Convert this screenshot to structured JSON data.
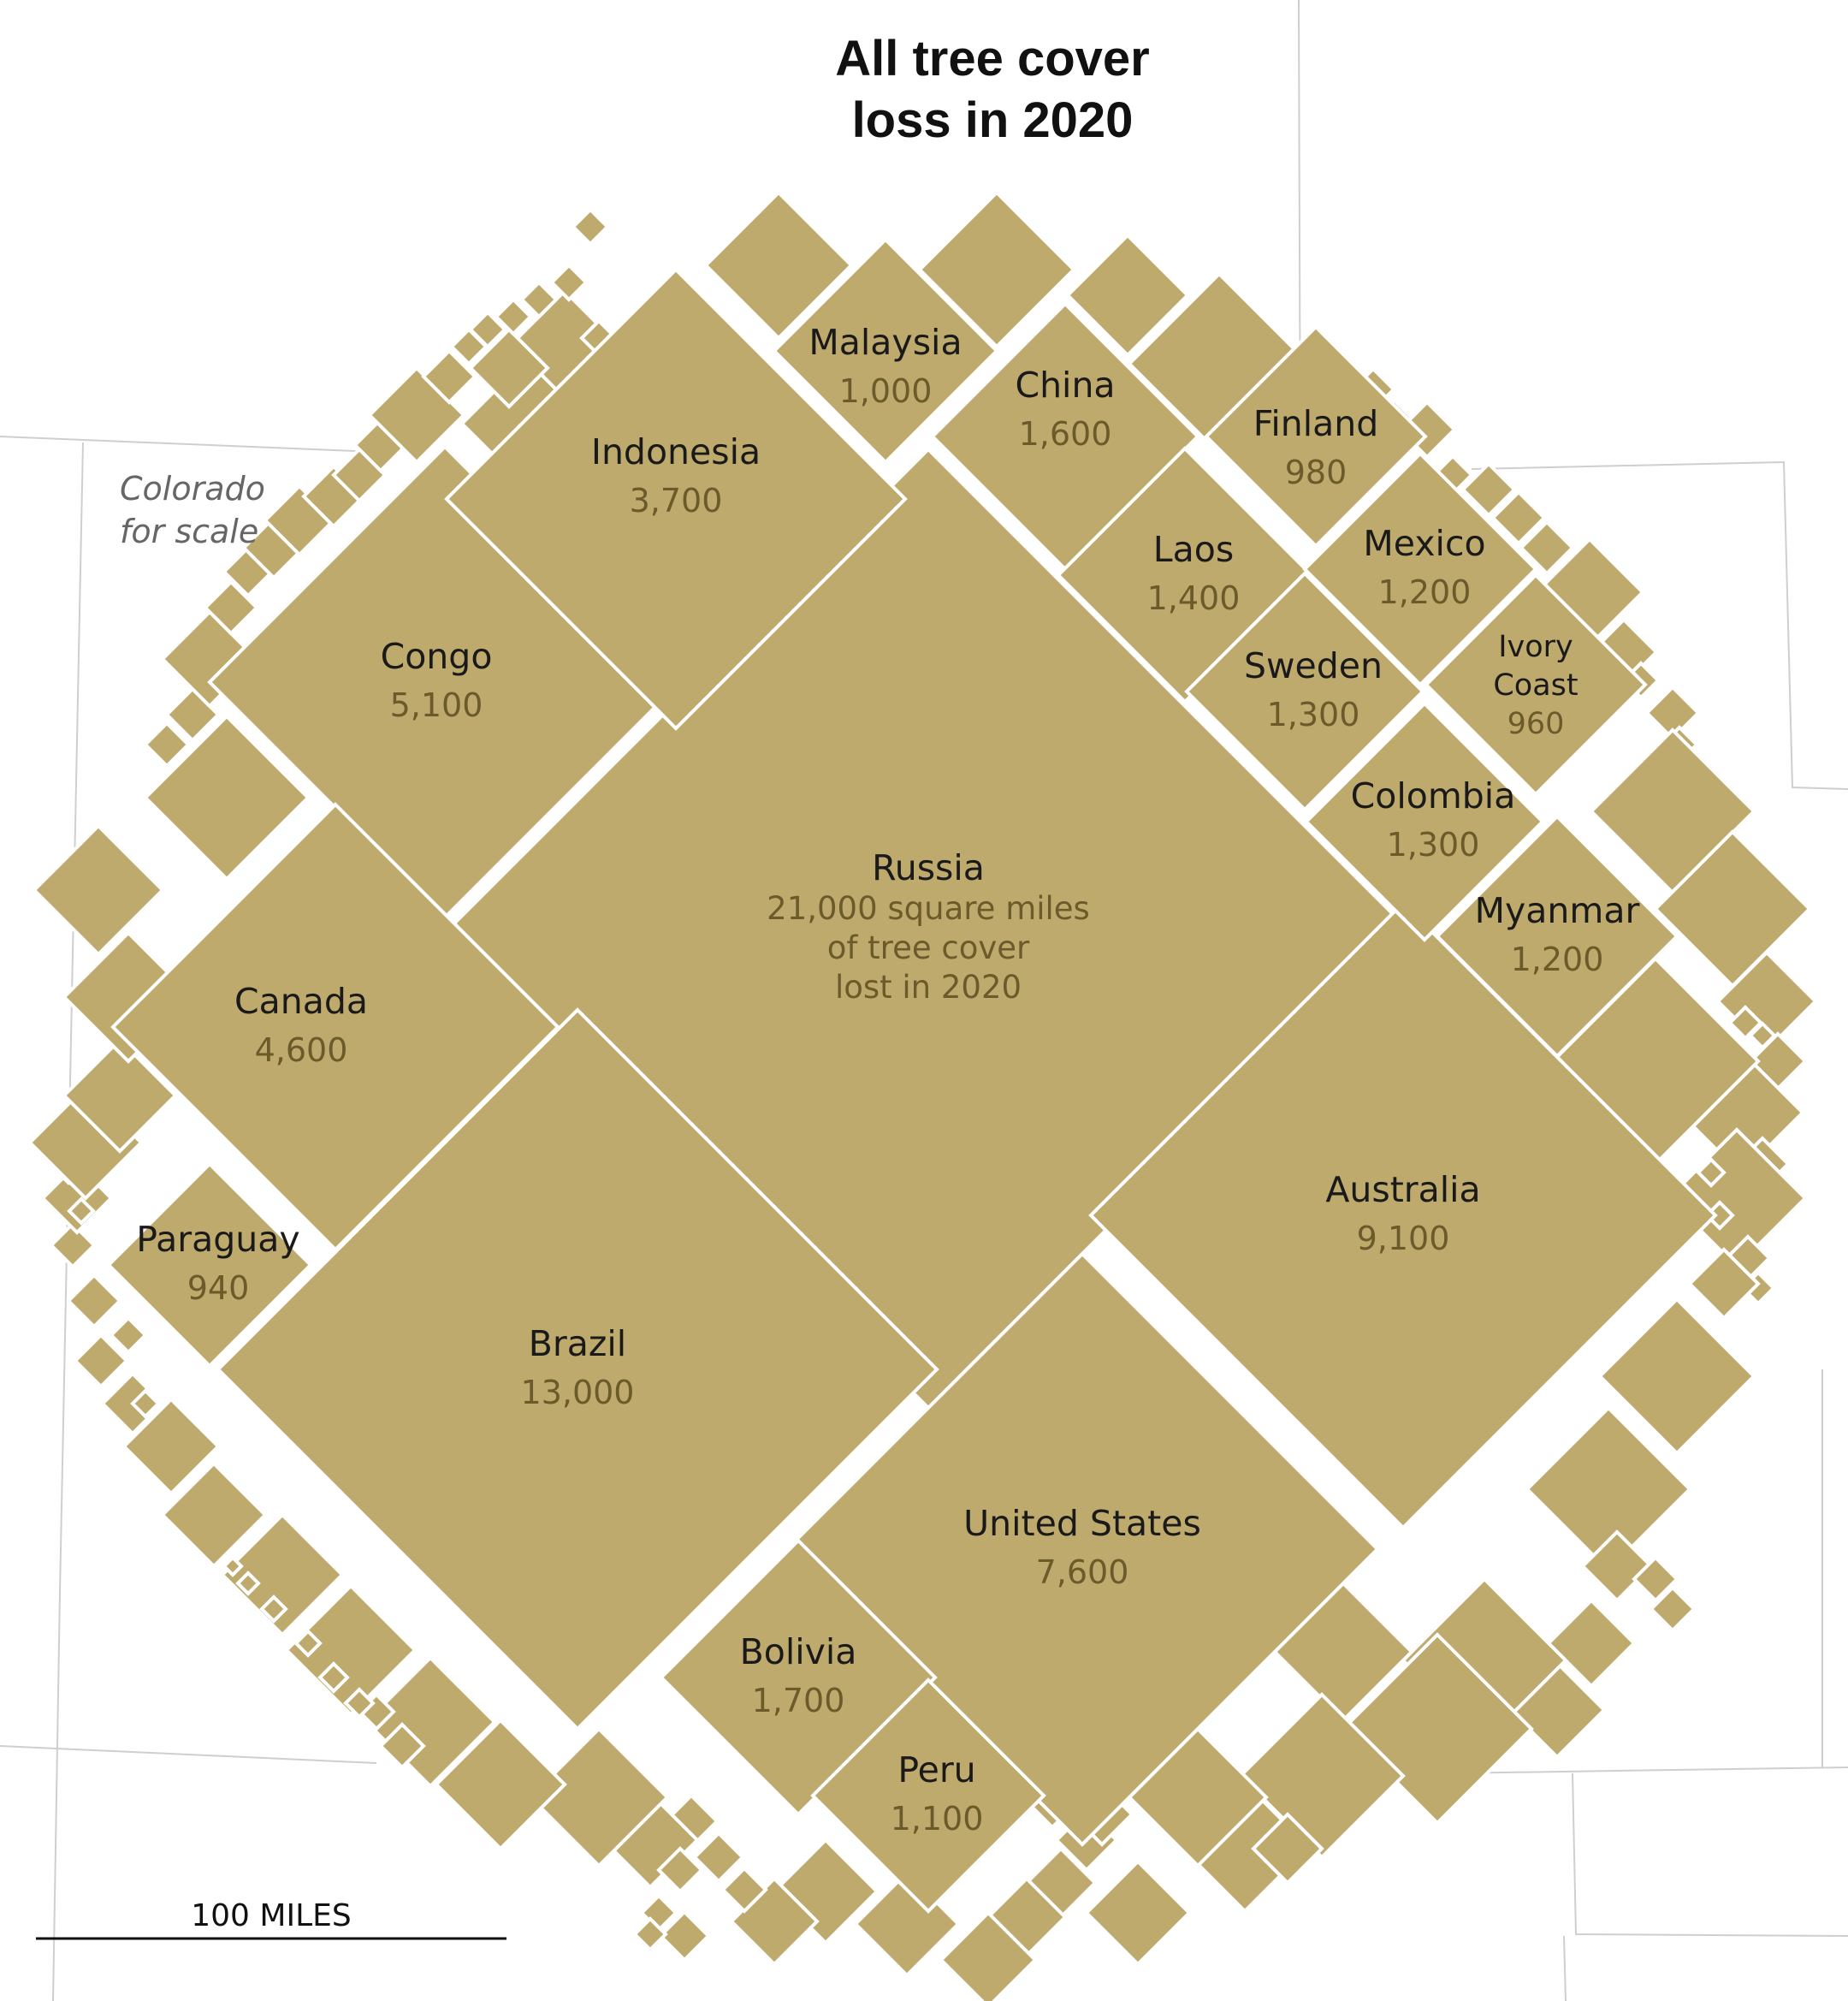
{
  "chart_data": {
    "type": "treemap",
    "title_lines": [
      "All tree cover",
      "loss in 2020"
    ],
    "annotation_lines": [
      "Colorado",
      "for scale"
    ],
    "scale_label": "100 MILES",
    "colors": {
      "fill": "#bfaa6d",
      "stroke": "#ffffff",
      "state_border": "#cfcfcf",
      "value_text": "#6b5a2a"
    },
    "countries": [
      {
        "name": "Russia",
        "value": 21000,
        "label_lines": [
          "Russia"
        ],
        "value_lines": [
          "21,000 square miles",
          "of tree cover",
          "lost in 2020"
        ]
      },
      {
        "name": "Brazil",
        "value": 13000,
        "label_lines": [
          "Brazil"
        ],
        "value_lines": [
          "13,000"
        ]
      },
      {
        "name": "Australia",
        "value": 9100,
        "label_lines": [
          "Australia"
        ],
        "value_lines": [
          "9,100"
        ]
      },
      {
        "name": "United States",
        "value": 7600,
        "label_lines": [
          "United States"
        ],
        "value_lines": [
          "7,600"
        ]
      },
      {
        "name": "Congo",
        "value": 5100,
        "label_lines": [
          "Congo"
        ],
        "value_lines": [
          "5,100"
        ]
      },
      {
        "name": "Canada",
        "value": 4600,
        "label_lines": [
          "Canada"
        ],
        "value_lines": [
          "4,600"
        ]
      },
      {
        "name": "Indonesia",
        "value": 3700,
        "label_lines": [
          "Indonesia"
        ],
        "value_lines": [
          "3,700"
        ]
      },
      {
        "name": "Bolivia",
        "value": 1700,
        "label_lines": [
          "Bolivia"
        ],
        "value_lines": [
          "1,700"
        ]
      },
      {
        "name": "China",
        "value": 1600,
        "label_lines": [
          "China"
        ],
        "value_lines": [
          "1,600"
        ]
      },
      {
        "name": "Laos",
        "value": 1400,
        "label_lines": [
          "Laos"
        ],
        "value_lines": [
          "1,400"
        ]
      },
      {
        "name": "Sweden",
        "value": 1300,
        "label_lines": [
          "Sweden"
        ],
        "value_lines": [
          "1,300"
        ]
      },
      {
        "name": "Colombia",
        "value": 1300,
        "label_lines": [
          "Colombia"
        ],
        "value_lines": [
          "1,300"
        ]
      },
      {
        "name": "Mexico",
        "value": 1200,
        "label_lines": [
          "Mexico"
        ],
        "value_lines": [
          "1,200"
        ]
      },
      {
        "name": "Myanmar",
        "value": 1200,
        "label_lines": [
          "Myanmar"
        ],
        "value_lines": [
          "1,200"
        ]
      },
      {
        "name": "Peru",
        "value": 1100,
        "label_lines": [
          "Peru"
        ],
        "value_lines": [
          "1,100"
        ]
      },
      {
        "name": "Malaysia",
        "value": 1000,
        "label_lines": [
          "Malaysia"
        ],
        "value_lines": [
          "1,000"
        ]
      },
      {
        "name": "Finland",
        "value": 980,
        "label_lines": [
          "Finland"
        ],
        "value_lines": [
          "980"
        ]
      },
      {
        "name": "Ivory Coast",
        "value": 960,
        "label_lines": [
          "Ivory",
          "Coast"
        ],
        "value_lines": [
          "960"
        ]
      },
      {
        "name": "Paraguay",
        "value": 940,
        "label_lines": [
          "Paraguay"
        ],
        "value_lines": [
          "940"
        ]
      }
    ]
  }
}
